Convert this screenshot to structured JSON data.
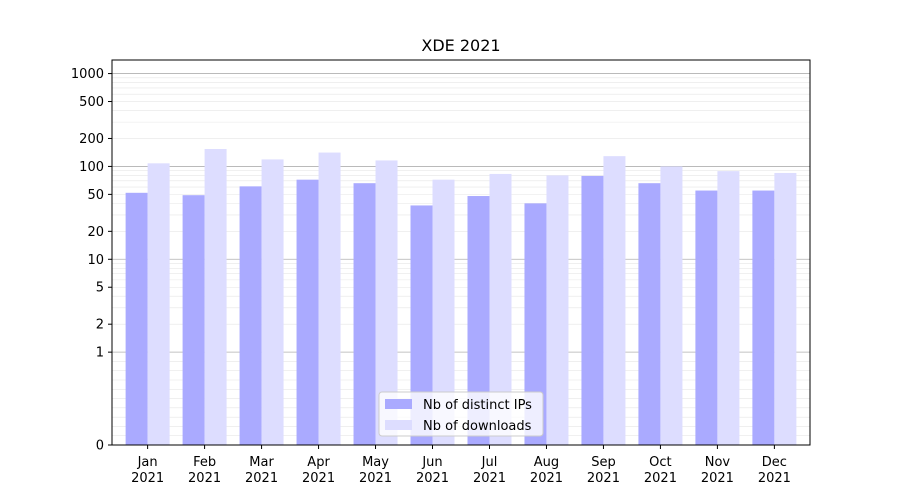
{
  "chart_data": {
    "type": "bar",
    "title": "XDE 2021",
    "xlabel": "",
    "ylabel": "",
    "y_scale": "symlog",
    "ylim": [
      0,
      1400
    ],
    "y_ticks": [
      {
        "value": 0,
        "label": "0"
      },
      {
        "value": 1,
        "label": "1"
      },
      {
        "value": 2,
        "label": "2"
      },
      {
        "value": 5,
        "label": "5"
      },
      {
        "value": 10,
        "label": "10"
      },
      {
        "value": 20,
        "label": "20"
      },
      {
        "value": 50,
        "label": "50"
      },
      {
        "value": 100,
        "label": "100"
      },
      {
        "value": 200,
        "label": "200"
      },
      {
        "value": 500,
        "label": "500"
      },
      {
        "value": 1000,
        "label": "1000"
      }
    ],
    "categories": [
      "Jan\n2021",
      "Feb\n2021",
      "Mar\n2021",
      "Apr\n2021",
      "May\n2021",
      "Jun\n2021",
      "Jul\n2021",
      "Aug\n2021",
      "Sep\n2021",
      "Oct\n2021",
      "Nov\n2021",
      "Dec\n2021"
    ],
    "series": [
      {
        "name": "Nb of distinct IPs",
        "color": "#aaaaff",
        "values": [
          52,
          49,
          61,
          72,
          66,
          38,
          48,
          40,
          79,
          66,
          55,
          55
        ]
      },
      {
        "name": "Nb of downloads",
        "color": "#ddddff",
        "values": [
          108,
          154,
          119,
          141,
          116,
          72,
          83,
          80,
          129,
          100,
          89,
          85
        ]
      }
    ],
    "grid": true,
    "legend_position": "bottom-center"
  }
}
